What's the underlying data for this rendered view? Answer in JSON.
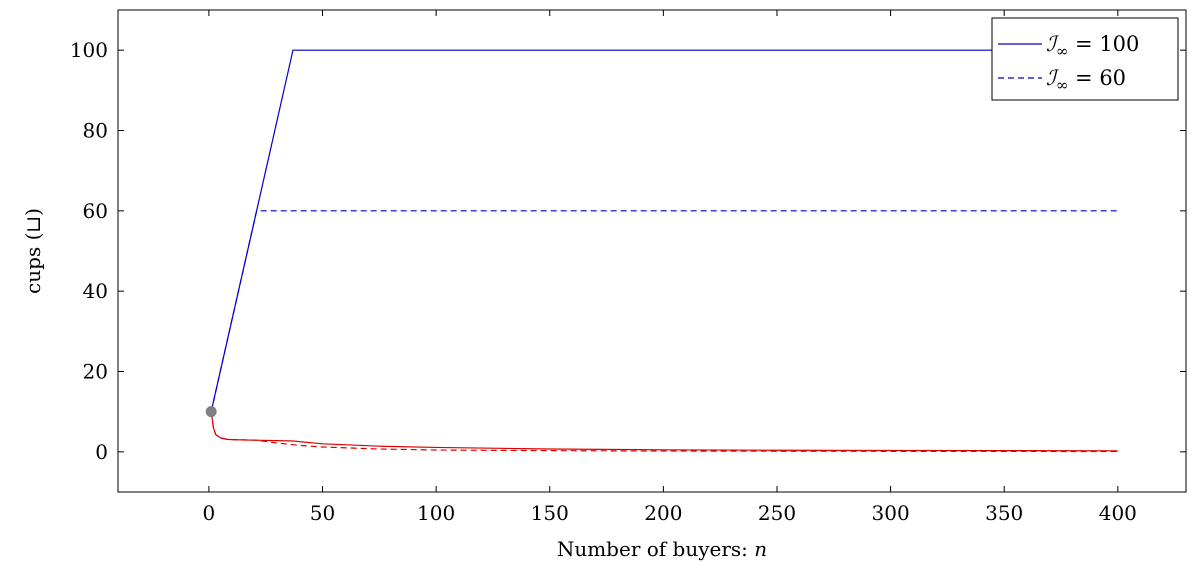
{
  "chart_data": {
    "type": "line",
    "xlabel": "Number of buyers: ",
    "xlabel_var": "n",
    "ylabel": "cups (⊔)",
    "xlim": [
      -40,
      430
    ],
    "ylim": [
      -10,
      110
    ],
    "xticks": [
      0,
      50,
      100,
      150,
      200,
      250,
      300,
      350,
      400
    ],
    "yticks": [
      0,
      20,
      40,
      60,
      80,
      100
    ],
    "grid": false,
    "legend_position": "top-right",
    "colors": {
      "blue": "#0000cc",
      "red": "#dd0000",
      "marker": "#808080"
    },
    "marker": {
      "x": 1,
      "y": 10
    },
    "series": [
      {
        "name": "ℐ∞ = 100",
        "style": "solid",
        "color": "blue",
        "x": [
          1,
          37,
          400
        ],
        "y": [
          10,
          100,
          100
        ]
      },
      {
        "name": "ℐ∞ = 60",
        "style": "dashed",
        "color": "blue",
        "x": [
          1,
          21,
          400
        ],
        "y": [
          10,
          60,
          60
        ]
      },
      {
        "style": "solid",
        "color": "red",
        "x": [
          1,
          2,
          3,
          5,
          8,
          12,
          20,
          30,
          37,
          50,
          75,
          100,
          150,
          200,
          250,
          300,
          350,
          400
        ],
        "y": [
          10,
          6,
          4.3,
          3.5,
          3.1,
          3,
          2.9,
          2.8,
          2.7,
          2.0,
          1.4,
          1.1,
          0.7,
          0.5,
          0.4,
          0.35,
          0.3,
          0.25
        ]
      },
      {
        "style": "dashed",
        "color": "red",
        "x": [
          1,
          2,
          3,
          5,
          8,
          12,
          21,
          30,
          40,
          50,
          75,
          100,
          150,
          200,
          250,
          300,
          350,
          400
        ],
        "y": [
          10,
          6,
          4.3,
          3.5,
          3.1,
          3,
          2.9,
          2.2,
          1.6,
          1.2,
          0.7,
          0.45,
          0.3,
          0.2,
          0.15,
          0.12,
          0.1,
          0.08
        ]
      }
    ],
    "legend": [
      {
        "label_sym": "ℐ",
        "label_sub": "∞",
        "label_eq": " = 100",
        "style": "solid"
      },
      {
        "label_sym": "ℐ",
        "label_sub": "∞",
        "label_eq": " = 60",
        "style": "dashed"
      }
    ]
  }
}
